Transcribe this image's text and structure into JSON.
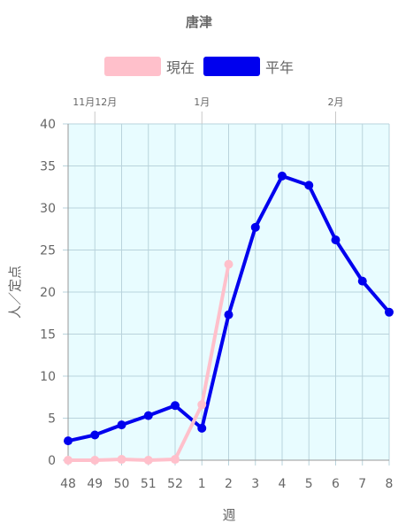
{
  "chart_data": {
    "type": "line",
    "title": "唐津",
    "xlabel": "週",
    "ylabel": "人／定点",
    "ylim": [
      0,
      40
    ],
    "yticks": [
      "0",
      "5",
      "10",
      "15",
      "20",
      "25",
      "30",
      "35",
      "40"
    ],
    "categories": [
      "48",
      "49",
      "50",
      "51",
      "52",
      "1",
      "2",
      "3",
      "4",
      "5",
      "6",
      "7",
      "8"
    ],
    "month_labels": [
      {
        "text": "11月12月",
        "category": "49"
      },
      {
        "text": "1月",
        "category": "1"
      },
      {
        "text": "2月",
        "category": "6"
      }
    ],
    "grid": true,
    "legend_position": "top",
    "plot_background": "#e8fcff",
    "series": [
      {
        "name": "現在",
        "color": "#ffc0cb",
        "values": [
          0.0,
          0.0,
          0.1,
          0.0,
          0.1,
          6.6,
          23.3,
          null,
          null,
          null,
          null,
          null,
          null
        ]
      },
      {
        "name": "平年",
        "color": "#0000ee",
        "values": [
          2.3,
          3.0,
          4.2,
          5.3,
          6.5,
          3.8,
          17.3,
          27.7,
          33.8,
          32.7,
          26.2,
          21.3,
          17.6
        ]
      }
    ]
  }
}
